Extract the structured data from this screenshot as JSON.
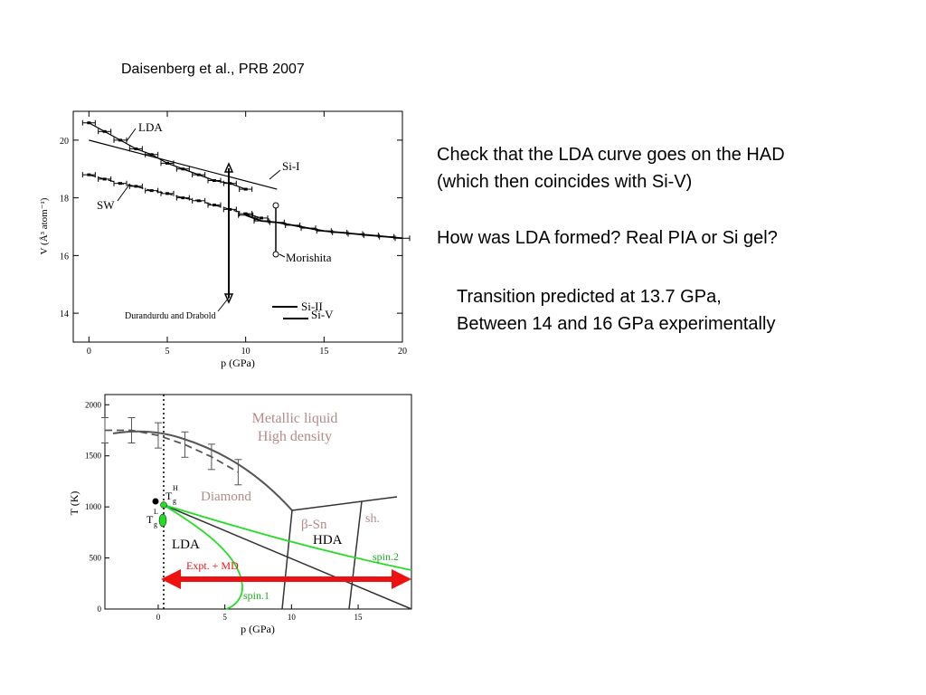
{
  "citation": "Daisenberg et al., PRB 2007",
  "notes": {
    "line1": "Check that the LDA curve goes on the HAD",
    "line2": "(which then coincides with Si-V)",
    "line3": "How was LDA formed? Real PIA or Si gel?",
    "line4": "Transition predicted at 13.7 GPa,",
    "line5": "Between 14 and 16 GPa experimentally"
  },
  "chart_data": [
    {
      "type": "line",
      "xlabel": "p (GPa)",
      "ylabel": "V (Å³ atom⁻¹)",
      "xlim": [
        -1,
        20
      ],
      "ylim": [
        13,
        21
      ],
      "xticks": [
        "0",
        "5",
        "10",
        "15",
        "20"
      ],
      "yticks": [
        "14",
        "16",
        "18",
        "20"
      ],
      "annotations": [
        "LDA",
        "SW",
        "Si-I",
        "Morishita",
        "Durandurdu and Drabold",
        "Si-II",
        "Si-V"
      ],
      "series": [
        {
          "name": "LDA",
          "x": [
            0,
            1,
            2,
            3,
            4,
            5,
            6,
            7,
            8,
            9,
            10
          ],
          "y": [
            20.6,
            20.3,
            20.0,
            19.7,
            19.5,
            19.2,
            19.0,
            18.8,
            18.6,
            18.5,
            18.3
          ]
        },
        {
          "name": "SW",
          "x": [
            0,
            1,
            2,
            3,
            4,
            5,
            6,
            7,
            8,
            9,
            10,
            11
          ],
          "y": [
            18.8,
            18.65,
            18.5,
            18.4,
            18.25,
            18.15,
            18.0,
            17.9,
            17.75,
            17.6,
            17.45,
            17.3
          ]
        },
        {
          "name": "Si-I",
          "x": [
            0,
            12
          ],
          "y": [
            20.0,
            18.3
          ]
        }
      ]
    },
    {
      "type": "line",
      "xlabel": "p (GPa)",
      "ylabel": "T (K)",
      "xlim": [
        -4,
        19
      ],
      "ylim": [
        0,
        2100
      ],
      "xticks": [
        "0",
        "5",
        "10",
        "15"
      ],
      "yticks": [
        "0",
        "500",
        "1000",
        "1500",
        "2000"
      ],
      "annotations": [
        "Metallic liquid",
        "High density",
        "Diamond",
        "β-Sn",
        "sh.",
        "HDA",
        "LDA",
        "Expt. + MD",
        "spin.1",
        "spin.2",
        "T",
        "g",
        "H",
        "L"
      ],
      "series": [
        {
          "name": "",
          "x": [
            -4,
            -2,
            0,
            2,
            4,
            6,
            8,
            10
          ],
          "y": [
            1720,
            1730,
            1700,
            1630,
            1530,
            1400,
            1230,
            1050
          ]
        }
      ]
    }
  ],
  "colors": {
    "pink_label": "#b48a88",
    "green": "#22dd22",
    "arrow_red": "#ee1111",
    "axis": "#000000"
  }
}
